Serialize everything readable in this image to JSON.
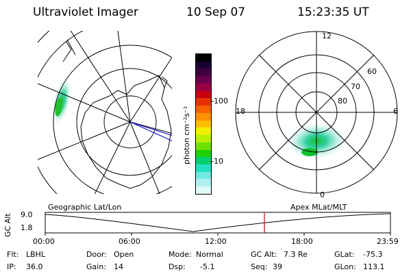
{
  "header": {
    "instrument": "Ultraviolet Imager",
    "date": "10 Sep 07",
    "time": "15:23:35 UT"
  },
  "geo_panel": {
    "label": "Geographic Lat/Lon"
  },
  "polar_panel": {
    "label": "Apex MLat/MLT",
    "mlt_labels": {
      "top": "12",
      "left": "18",
      "right": "6",
      "bottom": "0"
    },
    "lat_labels": [
      "60",
      "70",
      "80"
    ]
  },
  "colorbar": {
    "unit_label": "photon cm⁻²s⁻¹",
    "ticks": [
      "100",
      "10"
    ],
    "colors": [
      "#000000",
      "#1a0033",
      "#400040",
      "#6a004a",
      "#9a0040",
      "#c80010",
      "#e83000",
      "#f86000",
      "#ff9000",
      "#ffc000",
      "#f0f000",
      "#b8f000",
      "#70e000",
      "#20d000",
      "#00d070",
      "#20e0c0",
      "#70e8e0",
      "#b0f0f0",
      "#e0f8f8"
    ]
  },
  "altitude_strip": {
    "axis_title": "GC Alt",
    "y_ticks": [
      "9.0",
      "1.8"
    ],
    "x_ticks": [
      "00:00",
      "06:00",
      "12:00",
      "18:00",
      "23:59"
    ],
    "marker_color": "#cc0000"
  },
  "info": {
    "flt_label": "Flt:",
    "flt_value": "LBHL",
    "ip_label": "IP:",
    "ip_value": "36.0",
    "door_label": "Door:",
    "door_value": "Open",
    "gain_label": "Gain:",
    "gain_value": "14",
    "mode_label": "Mode:",
    "mode_value": "Normal",
    "dsp_label": "Dsp:",
    "dsp_value": "-5.1",
    "gcalt_label": "GC Alt:",
    "gcalt_value": "7.3 Re",
    "seq_label": "Seq:",
    "seq_value": "39",
    "glat_label": "GLat:",
    "glat_value": "-75.3",
    "glon_label": "GLon:",
    "glon_value": "113.1"
  }
}
